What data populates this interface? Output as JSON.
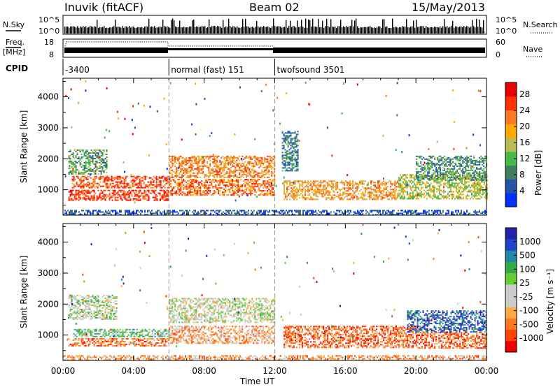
{
  "header": {
    "station": "Inuvik (fitACF)",
    "beam": "Beam 02",
    "date": "15/May/2013"
  },
  "nsky_panel": {
    "left_label": "N.Sky",
    "right_label": "N.Search",
    "y_ticks": [
      "10^5",
      "10^0"
    ],
    "right_ticks": [
      "10^5",
      "10^0"
    ]
  },
  "freq_panel": {
    "left_label_line1": "Freq.",
    "left_label_line2": "[MHz]",
    "right_label": "Nave",
    "y_ticks": [
      "18",
      "8"
    ],
    "right_ticks": [
      "60",
      "0"
    ]
  },
  "cpid": {
    "label": "CPID",
    "segments": [
      {
        "label": "-3400",
        "start_hour": 0,
        "end_hour": 6
      },
      {
        "label": "normal (fast) 151",
        "start_hour": 6,
        "end_hour": 12
      },
      {
        "label": "twofsound 3501",
        "start_hour": 12,
        "end_hour": 24
      }
    ]
  },
  "chart_data": [
    {
      "type": "heatmap",
      "name": "power",
      "xlabel": "Time UT",
      "ylabel": "Slant Range [km]",
      "x_ticks": [
        "00:00",
        "04:00",
        "08:00",
        "12:00",
        "16:00",
        "20:00",
        "00:00"
      ],
      "y_ticks": [
        1000,
        2000,
        3000,
        4000
      ],
      "xlim": [
        0,
        24
      ],
      "ylim": [
        180,
        4600
      ],
      "colorbar": {
        "label": "Power [dB]",
        "ticks": [
          4,
          8,
          12,
          16,
          20,
          24,
          28
        ],
        "range": [
          0,
          31
        ],
        "colors": [
          "#0033ff",
          "#2255aa",
          "#3f7f5f",
          "#44bb44",
          "#bbbb55",
          "#ffaa00",
          "#ff7722",
          "#ff3300",
          "#ee0000"
        ]
      },
      "bands": [
        {
          "t0": 0.3,
          "t1": 6.0,
          "r0": 650,
          "r1": 1000,
          "level": 0.85
        },
        {
          "t0": 0.5,
          "t1": 6.0,
          "r0": 1050,
          "r1": 1450,
          "level": 0.8
        },
        {
          "t0": 0.3,
          "t1": 2.5,
          "r0": 1500,
          "r1": 2300,
          "level": 0.35
        },
        {
          "t0": 6.0,
          "t1": 12.0,
          "r0": 1400,
          "r1": 2100,
          "level": 0.7
        },
        {
          "t0": 6.0,
          "t1": 12.0,
          "r0": 850,
          "r1": 1350,
          "level": 0.75
        },
        {
          "t0": 12.5,
          "t1": 19.0,
          "r0": 700,
          "r1": 1300,
          "level": 0.65
        },
        {
          "t0": 19.0,
          "t1": 24.0,
          "r0": 700,
          "r1": 1500,
          "level": 0.5
        },
        {
          "t0": 20.0,
          "t1": 24.0,
          "r0": 1300,
          "r1": 2100,
          "level": 0.3
        },
        {
          "t0": 12.4,
          "t1": 13.3,
          "r0": 1600,
          "r1": 2900,
          "level": 0.25
        },
        {
          "t0": 0.0,
          "t1": 24.0,
          "r0": 200,
          "r1": 350,
          "level": 0.15
        }
      ]
    },
    {
      "type": "heatmap",
      "name": "velocity",
      "xlabel": "Time UT",
      "ylabel": "Slant Range [km]",
      "x_ticks": [
        "00:00",
        "04:00",
        "08:00",
        "12:00",
        "16:00",
        "20:00",
        "00:00"
      ],
      "y_ticks": [
        1000,
        2000,
        3000,
        4000
      ],
      "xlim": [
        0,
        24
      ],
      "ylim": [
        180,
        4600
      ],
      "colorbar": {
        "label": "Velocity [m s⁻¹]",
        "ticks": [
          "1000",
          "500",
          "100",
          "25",
          "-25",
          "-100",
          "-500",
          "-1000"
        ],
        "colors": [
          "#ee0000",
          "#ff4400",
          "#ff7722",
          "#ffaa44",
          "#cccccc",
          "#cccccc",
          "#66cc33",
          "#33aa44",
          "#2288aa",
          "#2244cc",
          "#2222aa"
        ]
      },
      "bands": [
        {
          "t0": 0.3,
          "t1": 6.0,
          "r0": 650,
          "r1": 900,
          "level": 0.22
        },
        {
          "t0": 0.5,
          "t1": 6.0,
          "r0": 950,
          "r1": 1200,
          "level": 0.62
        },
        {
          "t0": 0.3,
          "t1": 3.0,
          "r0": 1500,
          "r1": 2300,
          "level": 0.5
        },
        {
          "t0": 6.0,
          "t1": 12.0,
          "r0": 1400,
          "r1": 2200,
          "level": 0.48
        },
        {
          "t0": 6.0,
          "t1": 12.0,
          "r0": 750,
          "r1": 1300,
          "level": 0.3
        },
        {
          "t0": 12.5,
          "t1": 20.0,
          "r0": 600,
          "r1": 1300,
          "level": 0.2
        },
        {
          "t0": 19.5,
          "t1": 24.0,
          "r0": 1100,
          "r1": 1800,
          "level": 0.85
        },
        {
          "t0": 20.0,
          "t1": 24.0,
          "r0": 600,
          "r1": 1100,
          "level": 0.2
        },
        {
          "t0": 0.0,
          "t1": 24.0,
          "r0": 200,
          "r1": 350,
          "level": 0.3
        }
      ]
    }
  ]
}
